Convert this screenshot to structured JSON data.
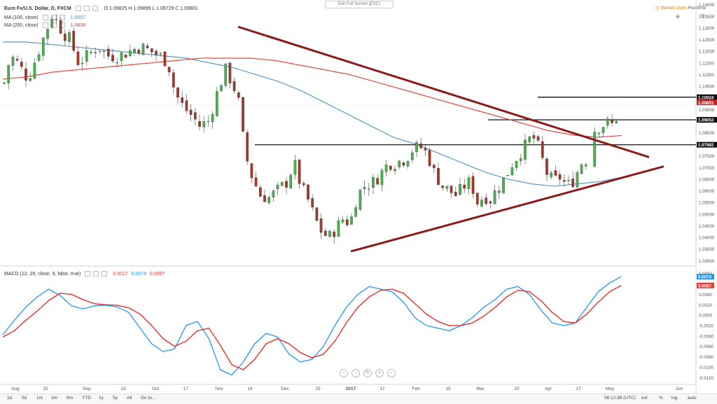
{
  "header": {
    "exit_fullscreen": "Exit Full Screen (ESC)",
    "market_status": "Market Open",
    "realtime": "Realtime"
  },
  "legend": {
    "symbol": "Euro Fx/U.S. Dollar, D, FXCM",
    "ohlc": "O 1.09825 H 1.09899 L 1.09729 C 1.09801",
    "ma100_label": "MA (100, close)",
    "ma100_value": "1.0657",
    "ma200_label": "MA (200, close)",
    "ma200_value": "1.0838",
    "macd_label": "MACD (12, 26, close, 9, false, true)",
    "macd_hist": "0.0017",
    "macd_value": "0.0074",
    "macd_signal": "0.0057"
  },
  "toolbar": {
    "ranges": [
      "1d",
      "5d",
      "1m",
      "3m",
      "6m",
      "YTD",
      "1y",
      "5y",
      "All",
      "Go to..."
    ],
    "clock": "06:12:38 (UTC)",
    "right_buttons": [
      "ext",
      "%",
      "log",
      "auto"
    ]
  },
  "colors": {
    "bull": "#4caf50",
    "bear": "#a23a2c",
    "ma100": "#4a90c2",
    "ma200": "#e53935",
    "trend": "#8b1a1a",
    "macd": "#2196f3",
    "signal": "#f01c1c"
  },
  "chart_data": [
    {
      "type": "candlestick",
      "symbol": "EURUSD",
      "timeframe": "D",
      "ylim": [
        1.0295,
        1.1405
      ],
      "price_labels": [
        "1.14000",
        "1.13500",
        "1.13000",
        "1.12500",
        "1.12000",
        "1.11500",
        "1.11000",
        "1.10500",
        "1.10000",
        "1.09500",
        "1.09000",
        "1.08500",
        "1.08000",
        "1.07500",
        "1.07000",
        "1.06500",
        "1.06000",
        "1.05500",
        "1.05000",
        "1.04500",
        "1.04000",
        "1.03500",
        "1.03000"
      ],
      "date_labels": [
        "Aug",
        "15",
        "Sep",
        "19",
        "Oct",
        "17",
        "Nov",
        "14",
        "Dec",
        "15",
        "2017",
        "17",
        "Feb",
        "15",
        "Mar",
        "20",
        "Apr",
        "17",
        "May",
        "Jun"
      ],
      "highlighted_levels": [
        {
          "label": "1.10024",
          "value": 1.10024
        },
        {
          "label": "1.09801",
          "value": 1.09801
        },
        {
          "label": "1.09053",
          "value": 1.09053
        },
        {
          "label": "1.07982",
          "value": 1.07982
        }
      ],
      "horizontal_lines": [
        1.10024,
        1.09053,
        1.07982
      ],
      "trend_lines": [
        {
          "from": [
            1.1305
          ],
          "to": [
            1.0745
          ],
          "desc": "downtrend resistance"
        },
        {
          "from": [
            1.034
          ],
          "to": [
            1.0705
          ],
          "desc": "uptrend support"
        }
      ],
      "series": [
        {
          "name": "MA (100, close)",
          "values": [
            1.124,
            1.124,
            1.123,
            1.122,
            1.121,
            1.12,
            1.119,
            1.118,
            1.117,
            1.115,
            1.113,
            1.11,
            1.107,
            1.103,
            1.098,
            1.093,
            1.088,
            1.083,
            1.08,
            1.076,
            1.072,
            1.068,
            1.065,
            1.063,
            1.062,
            1.063,
            1.064,
            1.066
          ]
        },
        {
          "name": "MA (200, close)",
          "values": [
            1.108,
            1.109,
            1.111,
            1.112,
            1.113,
            1.114,
            1.115,
            1.116,
            1.117,
            1.117,
            1.117,
            1.116,
            1.114,
            1.112,
            1.11,
            1.107,
            1.104,
            1.101,
            1.098,
            1.095,
            1.092,
            1.089,
            1.086,
            1.084,
            1.083,
            1.0838
          ]
        }
      ]
    },
    {
      "type": "line",
      "title": "MACD (12, 26, close, 9, false, true)",
      "ylim": [
        -0.0125,
        0.0085
      ],
      "tick_labels": [
        "0.0080",
        "0.0060",
        "0.0040",
        "0.0020",
        "0.0000",
        "-0.0020",
        "-0.0040",
        "-0.0060",
        "-0.0080",
        "-0.0100",
        "-0.0120"
      ],
      "series": [
        {
          "name": "MACD",
          "values": [
            -0.0038,
            -0.001,
            0.0015,
            0.0035,
            0.005,
            0.0038,
            0.0018,
            0.0012,
            0.0018,
            0.0019,
            0.0016,
            0.0005,
            -0.0025,
            -0.0055,
            -0.007,
            -0.0065,
            -0.002,
            -0.0012,
            -0.0045,
            -0.0105,
            -0.0115,
            -0.009,
            -0.0055,
            -0.0035,
            -0.0042,
            -0.0075,
            -0.009,
            -0.0085,
            -0.006,
            -0.002,
            0.0015,
            0.004,
            0.0055,
            0.005,
            0.0045,
            0.0025,
            -0.0005,
            -0.002,
            -0.0025,
            -0.003,
            -0.002,
            -0.0005,
            0.0015,
            0.003,
            0.005,
            0.0055,
            0.004,
            0.001,
            -0.0015,
            -0.002,
            -0.0015,
            0.0015,
            0.0045,
            0.0062,
            0.0074
          ]
        },
        {
          "name": "Signal",
          "values": [
            -0.0042,
            -0.003,
            -0.001,
            0.0008,
            0.0028,
            0.0042,
            0.004,
            0.003,
            0.0022,
            0.002,
            0.0019,
            0.0014,
            0.0002,
            -0.002,
            -0.0045,
            -0.006,
            -0.005,
            -0.003,
            -0.0025,
            -0.0058,
            -0.0095,
            -0.0105,
            -0.0085,
            -0.0055,
            -0.0045,
            -0.0055,
            -0.0072,
            -0.0082,
            -0.0075,
            -0.005,
            -0.0015,
            0.0015,
            0.0035,
            0.0048,
            0.005,
            0.0042,
            0.0022,
            0.0002,
            -0.0012,
            -0.002,
            -0.002,
            -0.0015,
            -0.0002,
            0.0015,
            0.0035,
            0.0048,
            0.0045,
            0.0028,
            0.0005,
            -0.0012,
            -0.0015,
            0.0002,
            0.0025,
            0.0045,
            0.0057
          ]
        }
      ]
    }
  ]
}
